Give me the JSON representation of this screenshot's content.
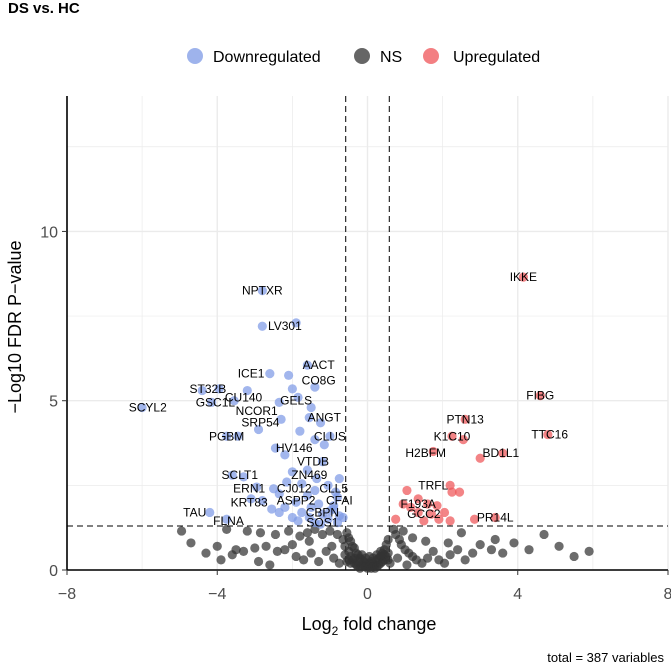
{
  "chart_data": {
    "type": "scatter",
    "title": "DS vs. HC",
    "xlabel_main": "Log",
    "xlabel_sub": "2",
    "xlabel_rest": " fold change",
    "ylabel": "−Log10 FDR P−value",
    "caption": "total = 387 variables",
    "xlim": [
      -8,
      8
    ],
    "ylim": [
      0,
      14
    ],
    "x_ticks": [
      -8,
      -4,
      0,
      4,
      8
    ],
    "x_tick_labels": [
      "−8",
      "−4",
      "0",
      "4",
      "8"
    ],
    "y_ticks": [
      0,
      5,
      10
    ],
    "y_tick_labels": [
      "0",
      "5",
      "10"
    ],
    "fc_cutoff": 0.58,
    "p_cutoff": 1.3,
    "legend": [
      {
        "key": "down",
        "label": "Downregulated",
        "color": "#7e9ae6"
      },
      {
        "key": "ns",
        "label": "NS",
        "color": "#333333"
      },
      {
        "key": "up",
        "label": "Upregulated",
        "color": "#ef5458"
      }
    ],
    "points_down": [
      [
        -2.8,
        8.25
      ],
      [
        -2.8,
        7.2
      ],
      [
        -1.9,
        7.3
      ],
      [
        -1.6,
        6.05
      ],
      [
        -2.6,
        5.8
      ],
      [
        -2.1,
        5.75
      ],
      [
        -4.4,
        5.3
      ],
      [
        -3.95,
        5.35
      ],
      [
        -3.2,
        5.3
      ],
      [
        -3.55,
        5.0
      ],
      [
        -4.15,
        4.95
      ],
      [
        -2.35,
        4.95
      ],
      [
        -2.0,
        5.35
      ],
      [
        -1.85,
        5.1
      ],
      [
        -1.4,
        5.4
      ],
      [
        -1.5,
        4.8
      ],
      [
        -6.0,
        4.8
      ],
      [
        -1.55,
        4.5
      ],
      [
        -2.3,
        4.45
      ],
      [
        -1.25,
        4.35
      ],
      [
        -2.9,
        4.15
      ],
      [
        -1.8,
        4.1
      ],
      [
        -1.0,
        3.95
      ],
      [
        -1.4,
        3.85
      ],
      [
        -1.15,
        3.7
      ],
      [
        -3.45,
        3.95
      ],
      [
        -3.75,
        3.95
      ],
      [
        -2.45,
        3.6
      ],
      [
        -2.2,
        3.4
      ],
      [
        -1.2,
        3.2
      ],
      [
        -1.6,
        2.95
      ],
      [
        -2.0,
        2.9
      ],
      [
        -3.6,
        2.8
      ],
      [
        -3.3,
        2.75
      ],
      [
        -1.35,
        2.7
      ],
      [
        -0.75,
        2.7
      ],
      [
        -2.15,
        2.6
      ],
      [
        -1.75,
        2.55
      ],
      [
        -1.05,
        2.5
      ],
      [
        -2.95,
        2.45
      ],
      [
        -2.5,
        2.4
      ],
      [
        -1.4,
        2.35
      ],
      [
        -0.85,
        2.3
      ],
      [
        -2.35,
        2.25
      ],
      [
        -1.6,
        2.2
      ],
      [
        -0.8,
        2.15
      ],
      [
        -3.1,
        2.1
      ],
      [
        -2.8,
        2.05
      ],
      [
        -1.9,
        2.0
      ],
      [
        -1.3,
        1.95
      ],
      [
        -0.9,
        1.9
      ],
      [
        -2.2,
        1.85
      ],
      [
        -1.5,
        1.85
      ],
      [
        -2.55,
        1.8
      ],
      [
        -1.0,
        1.75
      ],
      [
        -2.35,
        1.7
      ],
      [
        -1.75,
        1.7
      ],
      [
        -1.2,
        1.65
      ],
      [
        -0.75,
        1.6
      ],
      [
        -1.55,
        1.55
      ],
      [
        -2.0,
        1.55
      ],
      [
        -1.05,
        1.5
      ],
      [
        -1.85,
        1.45
      ],
      [
        -3.75,
        1.5
      ],
      [
        -4.2,
        1.7
      ],
      [
        -1.4,
        1.4
      ],
      [
        -0.8,
        1.4
      ],
      [
        -1.25,
        1.35
      ],
      [
        -0.65,
        1.55
      ],
      [
        -0.9,
        1.8
      ]
    ],
    "points_up": [
      [
        4.15,
        8.65
      ],
      [
        4.6,
        5.15
      ],
      [
        4.8,
        4.0
      ],
      [
        2.6,
        4.45
      ],
      [
        2.55,
        3.85
      ],
      [
        2.25,
        3.95
      ],
      [
        1.75,
        3.5
      ],
      [
        3.6,
        3.45
      ],
      [
        3.0,
        3.3
      ],
      [
        2.2,
        2.5
      ],
      [
        2.45,
        2.3
      ],
      [
        2.25,
        2.3
      ],
      [
        1.05,
        2.35
      ],
      [
        1.35,
        2.1
      ],
      [
        1.6,
        1.95
      ],
      [
        1.85,
        1.9
      ],
      [
        1.15,
        1.85
      ],
      [
        0.95,
        1.95
      ],
      [
        2.05,
        1.7
      ],
      [
        1.35,
        1.7
      ],
      [
        1.7,
        1.65
      ],
      [
        1.9,
        1.5
      ],
      [
        2.2,
        1.45
      ],
      [
        1.5,
        1.45
      ],
      [
        0.75,
        1.5
      ],
      [
        2.85,
        1.5
      ],
      [
        3.4,
        1.55
      ]
    ],
    "points_ns": [
      [
        -4.95,
        1.15
      ],
      [
        -3.75,
        1.2
      ],
      [
        -3.2,
        1.15
      ],
      [
        -2.85,
        1.1
      ],
      [
        -2.45,
        1.05
      ],
      [
        -2.1,
        1.15
      ],
      [
        -1.8,
        1.0
      ],
      [
        -1.6,
        1.1
      ],
      [
        -1.4,
        1.2
      ],
      [
        -1.2,
        1.05
      ],
      [
        -1.0,
        1.15
      ],
      [
        -0.8,
        1.05
      ],
      [
        -4.7,
        0.8
      ],
      [
        -4.0,
        0.7
      ],
      [
        -3.5,
        0.6
      ],
      [
        -3.3,
        0.55
      ],
      [
        -3.0,
        0.65
      ],
      [
        -2.7,
        0.7
      ],
      [
        -2.4,
        0.55
      ],
      [
        -2.2,
        0.6
      ],
      [
        -1.9,
        0.4
      ],
      [
        -1.7,
        0.3
      ],
      [
        -1.5,
        0.5
      ],
      [
        -1.3,
        0.25
      ],
      [
        -1.1,
        0.55
      ],
      [
        -0.9,
        0.35
      ],
      [
        -0.75,
        0.2
      ],
      [
        -3.6,
        0.45
      ],
      [
        -2.6,
        0.15
      ],
      [
        -2.0,
        0.75
      ],
      [
        -4.3,
        0.5
      ],
      [
        -3.9,
        0.3
      ],
      [
        -1.55,
        0.85
      ],
      [
        -2.9,
        0.25
      ],
      [
        -0.95,
        0.7
      ],
      [
        -0.55,
        1.1
      ],
      [
        -0.5,
        0.95
      ],
      [
        -0.45,
        0.85
      ],
      [
        -0.4,
        0.7
      ],
      [
        -0.35,
        0.65
      ],
      [
        -0.3,
        0.5
      ],
      [
        -0.25,
        0.45
      ],
      [
        -0.2,
        0.35
      ],
      [
        -0.15,
        0.3
      ],
      [
        -0.1,
        0.25
      ],
      [
        -0.05,
        0.2
      ],
      [
        0.0,
        0.15
      ],
      [
        0.05,
        0.2
      ],
      [
        0.1,
        0.25
      ],
      [
        0.15,
        0.2
      ],
      [
        0.2,
        0.15
      ],
      [
        0.25,
        0.3
      ],
      [
        0.3,
        0.35
      ],
      [
        0.35,
        0.4
      ],
      [
        0.4,
        0.5
      ],
      [
        0.45,
        0.6
      ],
      [
        0.5,
        0.75
      ],
      [
        0.55,
        0.9
      ],
      [
        -0.5,
        0.55
      ],
      [
        -0.45,
        0.4
      ],
      [
        -0.4,
        0.3
      ],
      [
        -0.35,
        0.2
      ],
      [
        -0.3,
        0.15
      ],
      [
        -0.25,
        0.1
      ],
      [
        -0.2,
        0.05
      ],
      [
        -0.15,
        0.1
      ],
      [
        -0.1,
        0.15
      ],
      [
        -0.05,
        0.1
      ],
      [
        0.0,
        0.05
      ],
      [
        0.05,
        0.1
      ],
      [
        0.1,
        0.05
      ],
      [
        0.15,
        0.1
      ],
      [
        0.2,
        0.05
      ],
      [
        0.25,
        0.1
      ],
      [
        0.3,
        0.15
      ],
      [
        0.35,
        0.2
      ],
      [
        0.4,
        0.25
      ],
      [
        0.45,
        0.3
      ],
      [
        0.5,
        0.4
      ],
      [
        0.55,
        0.5
      ],
      [
        -0.55,
        0.25
      ],
      [
        -0.6,
        0.45
      ],
      [
        -0.6,
        0.7
      ],
      [
        -0.65,
        0.9
      ],
      [
        -0.5,
        0.3
      ],
      [
        -0.45,
        0.2
      ],
      [
        -0.35,
        0.35
      ],
      [
        -0.25,
        0.25
      ],
      [
        -0.15,
        0.45
      ],
      [
        -0.05,
        0.35
      ],
      [
        0.05,
        0.4
      ],
      [
        0.15,
        0.35
      ],
      [
        0.25,
        0.45
      ],
      [
        0.35,
        0.55
      ],
      [
        0.45,
        0.45
      ],
      [
        0.55,
        0.3
      ],
      [
        0.6,
        0.2
      ],
      [
        0.7,
        1.2
      ],
      [
        0.75,
        1.05
      ],
      [
        0.85,
        0.9
      ],
      [
        0.9,
        0.75
      ],
      [
        1.0,
        0.6
      ],
      [
        1.1,
        0.5
      ],
      [
        1.2,
        0.4
      ],
      [
        1.3,
        0.3
      ],
      [
        1.45,
        0.2
      ],
      [
        1.6,
        0.35
      ],
      [
        1.75,
        0.55
      ],
      [
        1.9,
        0.3
      ],
      [
        2.05,
        0.2
      ],
      [
        2.2,
        0.45
      ],
      [
        2.4,
        0.6
      ],
      [
        2.6,
        0.3
      ],
      [
        2.8,
        0.5
      ],
      [
        3.0,
        0.75
      ],
      [
        3.3,
        0.6
      ],
      [
        3.6,
        0.5
      ],
      [
        3.9,
        0.8
      ],
      [
        4.3,
        0.6
      ],
      [
        4.7,
        1.05
      ],
      [
        5.1,
        0.7
      ],
      [
        5.5,
        0.4
      ],
      [
        5.9,
        0.55
      ],
      [
        3.4,
        0.9
      ],
      [
        2.15,
        0.8
      ],
      [
        1.2,
        0.95
      ],
      [
        0.95,
        1.15
      ],
      [
        1.55,
        0.85
      ],
      [
        0.8,
        0.35
      ],
      [
        1.05,
        0.15
      ],
      [
        2.5,
        1.1
      ]
    ],
    "labels": [
      {
        "text": "NPTXR",
        "x": -2.8,
        "y": 8.25
      },
      {
        "text": "LV301",
        "x": -2.2,
        "y": 7.2
      },
      {
        "text": "AACT",
        "x": -1.3,
        "y": 6.05
      },
      {
        "text": "ICE1",
        "x": -3.1,
        "y": 5.8
      },
      {
        "text": "CO8G",
        "x": -1.3,
        "y": 5.6
      },
      {
        "text": "ST32B",
        "x": -4.25,
        "y": 5.35
      },
      {
        "text": "CU140",
        "x": -3.3,
        "y": 5.1
      },
      {
        "text": "GELS",
        "x": -1.9,
        "y": 5.0
      },
      {
        "text": "GSC1L",
        "x": -4.05,
        "y": 4.95
      },
      {
        "text": "SCYL2",
        "x": -5.85,
        "y": 4.8
      },
      {
        "text": "NCOR1",
        "x": -2.95,
        "y": 4.7
      },
      {
        "text": "ANGT",
        "x": -1.15,
        "y": 4.5
      },
      {
        "text": "SRP54",
        "x": -2.85,
        "y": 4.35
      },
      {
        "text": "PGBM",
        "x": -3.75,
        "y": 3.95
      },
      {
        "text": "CLUS",
        "x": -1.0,
        "y": 3.95
      },
      {
        "text": "HV146",
        "x": -1.95,
        "y": 3.6
      },
      {
        "text": "VTDB",
        "x": -1.45,
        "y": 3.2
      },
      {
        "text": "SCLT1",
        "x": -3.4,
        "y": 2.8
      },
      {
        "text": "ZN469",
        "x": -1.55,
        "y": 2.8
      },
      {
        "text": "ERN1",
        "x": -3.15,
        "y": 2.4
      },
      {
        "text": "CJ012",
        "x": -1.95,
        "y": 2.4
      },
      {
        "text": "CLL5",
        "x": -0.9,
        "y": 2.4
      },
      {
        "text": "CFAI",
        "x": -0.75,
        "y": 2.05
      },
      {
        "text": "KRT83",
        "x": -3.15,
        "y": 2.0
      },
      {
        "text": "ASPP2",
        "x": -1.9,
        "y": 2.05
      },
      {
        "text": "TAU",
        "x": -4.6,
        "y": 1.7
      },
      {
        "text": "CBPN",
        "x": -1.2,
        "y": 1.7
      },
      {
        "text": "FLNA",
        "x": -3.7,
        "y": 1.45
      },
      {
        "text": "SOS1",
        "x": -1.2,
        "y": 1.4
      },
      {
        "text": "IKKE",
        "x": 4.15,
        "y": 8.65
      },
      {
        "text": "FIBG",
        "x": 4.6,
        "y": 5.15
      },
      {
        "text": "PTN13",
        "x": 2.6,
        "y": 4.45
      },
      {
        "text": "TTC16",
        "x": 4.85,
        "y": 4.0
      },
      {
        "text": "K1C10",
        "x": 2.25,
        "y": 3.95
      },
      {
        "text": "H2BFM",
        "x": 1.55,
        "y": 3.45
      },
      {
        "text": "BD1L1",
        "x": 3.55,
        "y": 3.45
      },
      {
        "text": "TRFL",
        "x": 1.75,
        "y": 2.5
      },
      {
        "text": "F193A",
        "x": 1.35,
        "y": 1.95
      },
      {
        "text": "GCC2",
        "x": 1.5,
        "y": 1.65
      },
      {
        "text": "PR14L",
        "x": 3.4,
        "y": 1.55
      }
    ]
  }
}
